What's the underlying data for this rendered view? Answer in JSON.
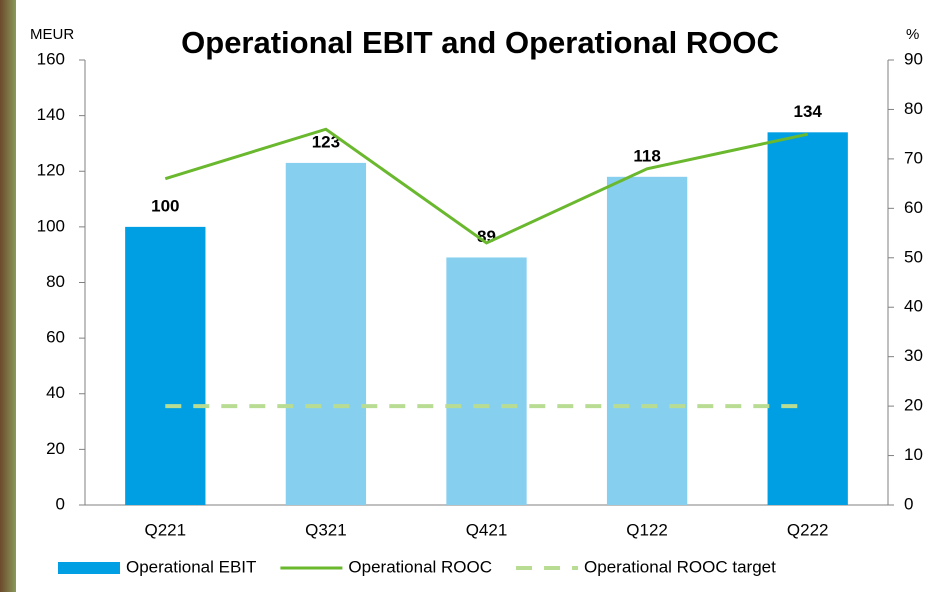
{
  "chart_data": {
    "type": "bar",
    "title": "Operational EBIT and Operational ROOC",
    "y_label": "MEUR",
    "y2_label": "%",
    "categories": [
      "Q221",
      "Q321",
      "Q421",
      "Q122",
      "Q222"
    ],
    "series": [
      {
        "name": "Operational EBIT",
        "type": "bar",
        "colors": [
          "#009fe3",
          "#87cfee",
          "#87cfee",
          "#87cfee",
          "#009fe3"
        ],
        "values": [
          100,
          123,
          89,
          118,
          134
        ],
        "data_labels": true
      },
      {
        "name": "Operational ROOC",
        "type": "line",
        "axis": "y2",
        "color": "#6ab82e",
        "values": [
          66,
          76,
          53,
          68,
          75
        ]
      },
      {
        "name": "Operational ROOC target",
        "type": "line",
        "axis": "y2",
        "color": "#b8dd92",
        "dashed": true,
        "values": [
          20,
          20,
          20,
          20,
          20
        ]
      }
    ],
    "ylim": [
      0,
      160
    ],
    "yticks": [
      0,
      20,
      40,
      60,
      80,
      100,
      120,
      140,
      160
    ],
    "y2lim": [
      0,
      90
    ],
    "y2ticks": [
      0,
      10,
      20,
      30,
      40,
      50,
      60,
      70,
      80,
      90
    ],
    "grid": false,
    "legend": "bottom"
  }
}
